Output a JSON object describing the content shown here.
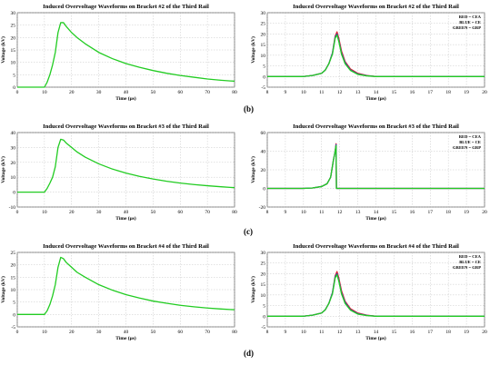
{
  "colors": {
    "red": "#e0202a",
    "blue": "#3040d0",
    "green": "#22cc22",
    "grid": "#b8b8b8",
    "axis": "#333333"
  },
  "captions": [
    "(b)",
    "(c)",
    "(d)"
  ],
  "chart_data": [
    {
      "type": "line",
      "title": "Induced Overvoltage Waveforms on Bracket #2 of the Third Rail",
      "xlabel": "Time (μs)",
      "ylabel": "Voltage (kV)",
      "xlim": [
        0,
        80
      ],
      "ylim": [
        0,
        30
      ],
      "xticks": [
        0,
        10,
        20,
        30,
        40,
        50,
        60,
        70,
        80
      ],
      "yticks": [
        0,
        5,
        10,
        15,
        20,
        25,
        30
      ],
      "grid": true,
      "legend": [],
      "series": [
        {
          "color": "#22cc22",
          "x": [
            0,
            10,
            11,
            12,
            13,
            14,
            15,
            16,
            17,
            18,
            20,
            22,
            25,
            30,
            35,
            40,
            45,
            50,
            55,
            60,
            65,
            70,
            75,
            80
          ],
          "y": [
            0,
            0,
            2,
            5,
            9,
            14,
            22,
            26,
            26,
            24.5,
            22,
            20,
            17.5,
            14,
            11.5,
            9.5,
            8,
            6.7,
            5.6,
            4.7,
            4,
            3.3,
            2.8,
            2.4
          ]
        }
      ]
    },
    {
      "type": "line",
      "title": "Induced Overvoltage Waveforms on Bracket #2 of the Third Rail",
      "xlabel": "Time (μs)",
      "ylabel": "Voltage (kV)",
      "xlim": [
        8,
        20
      ],
      "ylim": [
        -5,
        30
      ],
      "xticks": [
        8,
        9,
        10,
        11,
        12,
        13,
        14,
        15,
        16,
        17,
        18,
        19,
        20
      ],
      "yticks": [
        -5,
        0,
        5,
        10,
        15,
        20,
        25,
        30
      ],
      "grid": true,
      "legend": [
        "RED = CEA",
        "BLUE = CE",
        "GREEN = GRP"
      ],
      "series": [
        {
          "color": "#e0202a",
          "x": [
            8,
            10,
            10.5,
            11,
            11.2,
            11.4,
            11.6,
            11.75,
            11.85,
            11.95,
            12.1,
            12.3,
            12.6,
            13,
            13.5,
            14,
            20
          ],
          "y": [
            0,
            0,
            0.5,
            1.5,
            3,
            6,
            11,
            19,
            21,
            18,
            12,
            7,
            3.5,
            1.5,
            0.5,
            0,
            0
          ]
        },
        {
          "color": "#3040d0",
          "x": [
            8,
            10,
            10.5,
            11,
            11.2,
            11.4,
            11.6,
            11.75,
            11.85,
            11.95,
            12.1,
            12.3,
            12.6,
            13,
            13.5,
            14,
            20
          ],
          "y": [
            0,
            0,
            0.5,
            1.5,
            3,
            6,
            11,
            18.5,
            20,
            17,
            11,
            6.5,
            3,
            1.2,
            0.4,
            0,
            0
          ]
        },
        {
          "color": "#22cc22",
          "x": [
            8,
            10,
            10.5,
            11,
            11.2,
            11.4,
            11.6,
            11.75,
            11.85,
            11.95,
            12.1,
            12.3,
            12.6,
            13,
            13.5,
            14,
            20
          ],
          "y": [
            0,
            0,
            0.5,
            1.5,
            3,
            6,
            10.5,
            18,
            19.5,
            16.5,
            10.5,
            6,
            2.8,
            1,
            0.3,
            0,
            0
          ]
        }
      ]
    },
    {
      "type": "line",
      "title": "Induced Overvoltage Waveforms on Bracket #3 of the Third Rail",
      "xlabel": "Time (μs)",
      "ylabel": "Voltage (kV)",
      "xlim": [
        0,
        80
      ],
      "ylim": [
        -10,
        40
      ],
      "xticks": [
        0,
        10,
        20,
        30,
        40,
        50,
        60,
        70,
        80
      ],
      "yticks": [
        -10,
        0,
        10,
        20,
        30,
        40
      ],
      "grid": true,
      "legend": [],
      "series": [
        {
          "color": "#22cc22",
          "x": [
            0,
            10,
            11,
            12,
            13,
            14,
            15,
            16,
            17,
            18,
            20,
            22,
            25,
            30,
            35,
            40,
            45,
            50,
            55,
            60,
            65,
            70,
            75,
            80
          ],
          "y": [
            0,
            0,
            2.5,
            6,
            10,
            17,
            30,
            35.5,
            35,
            33,
            30,
            27,
            23.5,
            19,
            15.5,
            12.8,
            10.6,
            8.8,
            7.3,
            6.1,
            5.1,
            4.3,
            3.6,
            3
          ]
        }
      ]
    },
    {
      "type": "line",
      "title": "Induced Overvoltage Waveforms on Bracket #3 of the Third Rail",
      "xlabel": "Time (μs)",
      "ylabel": "Voltage (kV)",
      "xlim": [
        8,
        20
      ],
      "ylim": [
        -20,
        60
      ],
      "xticks": [
        8,
        9,
        10,
        11,
        12,
        13,
        14,
        15,
        16,
        17,
        18,
        19,
        20
      ],
      "yticks": [
        -20,
        0,
        20,
        40,
        60
      ],
      "grid": true,
      "legend": [
        "RED = CEA",
        "BLUE = CE",
        "GREEN = GRP"
      ],
      "series": [
        {
          "color": "#e0202a",
          "x": [
            8,
            10,
            10.5,
            11,
            11.3,
            11.5,
            11.65,
            11.75,
            11.8,
            11.82,
            20
          ],
          "y": [
            0,
            0,
            0.5,
            2,
            5,
            12,
            30,
            40,
            48,
            0,
            0
          ]
        },
        {
          "color": "#3040d0",
          "x": [
            8,
            10,
            10.5,
            11,
            11.3,
            11.5,
            11.65,
            11.75,
            11.8,
            11.82,
            20
          ],
          "y": [
            0,
            0,
            0.5,
            2,
            5,
            12,
            30,
            40,
            47,
            0,
            0
          ]
        },
        {
          "color": "#22cc22",
          "x": [
            8,
            10,
            10.5,
            11,
            11.3,
            11.5,
            11.65,
            11.75,
            11.8,
            11.82,
            20
          ],
          "y": [
            0,
            0,
            0.5,
            2,
            5,
            12,
            30,
            40,
            46,
            0,
            0
          ]
        }
      ]
    },
    {
      "type": "line",
      "title": "Induced Overvoltage Waveforms on Bracket #4 of the Third Rail",
      "xlabel": "Time (μs)",
      "ylabel": "Voltage (kV)",
      "xlim": [
        0,
        80
      ],
      "ylim": [
        -5,
        25
      ],
      "xticks": [
        0,
        10,
        20,
        30,
        40,
        50,
        60,
        70,
        80
      ],
      "yticks": [
        -5,
        0,
        5,
        10,
        15,
        20,
        25
      ],
      "grid": true,
      "legend": [],
      "series": [
        {
          "color": "#22cc22",
          "x": [
            0,
            10,
            11,
            12,
            13,
            14,
            15,
            16,
            17,
            18,
            20,
            22,
            25,
            30,
            35,
            40,
            45,
            50,
            55,
            60,
            65,
            70,
            75,
            80
          ],
          "y": [
            0,
            0,
            1.5,
            4,
            7.5,
            12,
            19,
            23,
            22.5,
            21,
            19,
            17,
            15,
            12,
            9.8,
            8,
            6.6,
            5.4,
            4.5,
            3.7,
            3.1,
            2.6,
            2.2,
            1.9
          ]
        }
      ]
    },
    {
      "type": "line",
      "title": "Induced Overvoltage Waveforms on Bracket #4 of the Third Rail",
      "xlabel": "Time (μs)",
      "ylabel": "Voltage (kV)",
      "xlim": [
        8,
        20
      ],
      "ylim": [
        -5,
        30
      ],
      "xticks": [
        8,
        9,
        10,
        11,
        12,
        13,
        14,
        15,
        16,
        17,
        18,
        19,
        20
      ],
      "yticks": [
        -5,
        0,
        5,
        10,
        15,
        20,
        25,
        30
      ],
      "grid": true,
      "legend": [
        "RED = CEA",
        "BLUE = CE",
        "GREEN = GRP"
      ],
      "series": [
        {
          "color": "#e0202a",
          "x": [
            8,
            10,
            10.5,
            11,
            11.2,
            11.4,
            11.6,
            11.75,
            11.85,
            11.95,
            12.1,
            12.3,
            12.6,
            13,
            13.5,
            14,
            20
          ],
          "y": [
            0,
            0,
            0.5,
            1.5,
            3,
            6,
            11,
            19,
            21,
            18,
            12,
            7,
            3.5,
            1.5,
            0.5,
            0,
            0
          ]
        },
        {
          "color": "#3040d0",
          "x": [
            8,
            10,
            10.5,
            11,
            11.2,
            11.4,
            11.6,
            11.75,
            11.85,
            11.95,
            12.1,
            12.3,
            12.6,
            13,
            13.5,
            14,
            20
          ],
          "y": [
            0,
            0,
            0.5,
            1.5,
            3,
            6,
            11,
            18.5,
            20,
            17,
            11,
            6.5,
            3,
            1.2,
            0.4,
            0,
            0
          ]
        },
        {
          "color": "#22cc22",
          "x": [
            8,
            10,
            10.5,
            11,
            11.2,
            11.4,
            11.6,
            11.75,
            11.85,
            11.95,
            12.1,
            12.3,
            12.6,
            13,
            13.5,
            14,
            20
          ],
          "y": [
            0,
            0,
            0.5,
            1.5,
            3,
            6,
            10.5,
            18,
            19.5,
            16.5,
            10.5,
            6,
            2.8,
            1,
            0.3,
            0,
            0
          ]
        }
      ]
    }
  ]
}
